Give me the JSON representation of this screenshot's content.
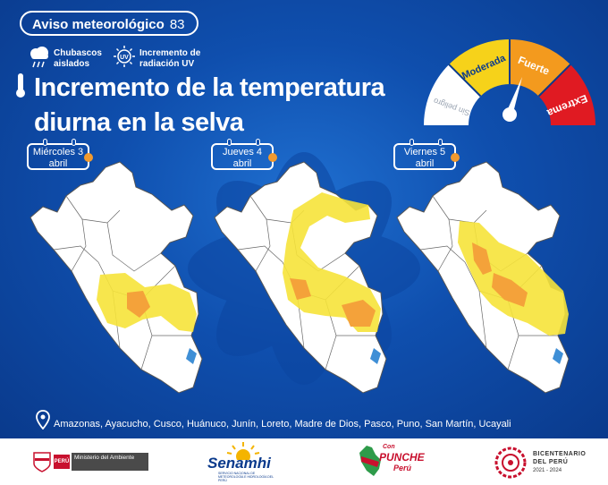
{
  "header": {
    "alert_label": "Aviso meteorológico",
    "alert_number": "83",
    "title_line1": "Incremento de la temperatura",
    "title_line2": "diurna en la selva"
  },
  "legend": [
    {
      "icon": "rain-cloud-icon",
      "text": "Chubascos aislados"
    },
    {
      "icon": "uv-sun-icon",
      "text": "Incremento de radiación UV"
    }
  ],
  "risk_gauge": {
    "levels": [
      {
        "label": "Sin peligro",
        "color": "#ffffff"
      },
      {
        "label": "Moderada",
        "color": "#f6d21a"
      },
      {
        "label": "Fuerte",
        "color": "#f39a1e"
      },
      {
        "label": "Extrema",
        "color": "#e01a22"
      }
    ],
    "current_level": "Fuerte"
  },
  "days": [
    {
      "day": "Miércoles 3",
      "month": "abril"
    },
    {
      "day": "Jueves 4",
      "month": "abril"
    },
    {
      "day": "Viernes 5",
      "month": "abril"
    }
  ],
  "colors": {
    "moderada": "#f6e33a",
    "fuerte": "#f4a23a",
    "water": "#3f8fd6",
    "map_fill": "#ffffff"
  },
  "regions_text": "Amazonas, Ayacucho, Cusco, Huánuco, Junín, Loreto, Madre de Dios, Pasco, Puno, San Martín, Ucayali",
  "footer": {
    "minam_country": "PERÚ",
    "minam_ministry": "Ministerio del Ambiente",
    "senamhi_name": "Senamhi",
    "senamhi_sub": "SERVICIO NACIONAL DE METEOROLOGÍA E HIDROLOGÍA DEL PERÚ",
    "puche_1": "Con",
    "puche_2": "PUNCHE",
    "puche_3": "Perú",
    "bicent_1": "BICENTENARIO",
    "bicent_2": "DEL PERÚ",
    "bicent_3": "2021 - 2024"
  }
}
